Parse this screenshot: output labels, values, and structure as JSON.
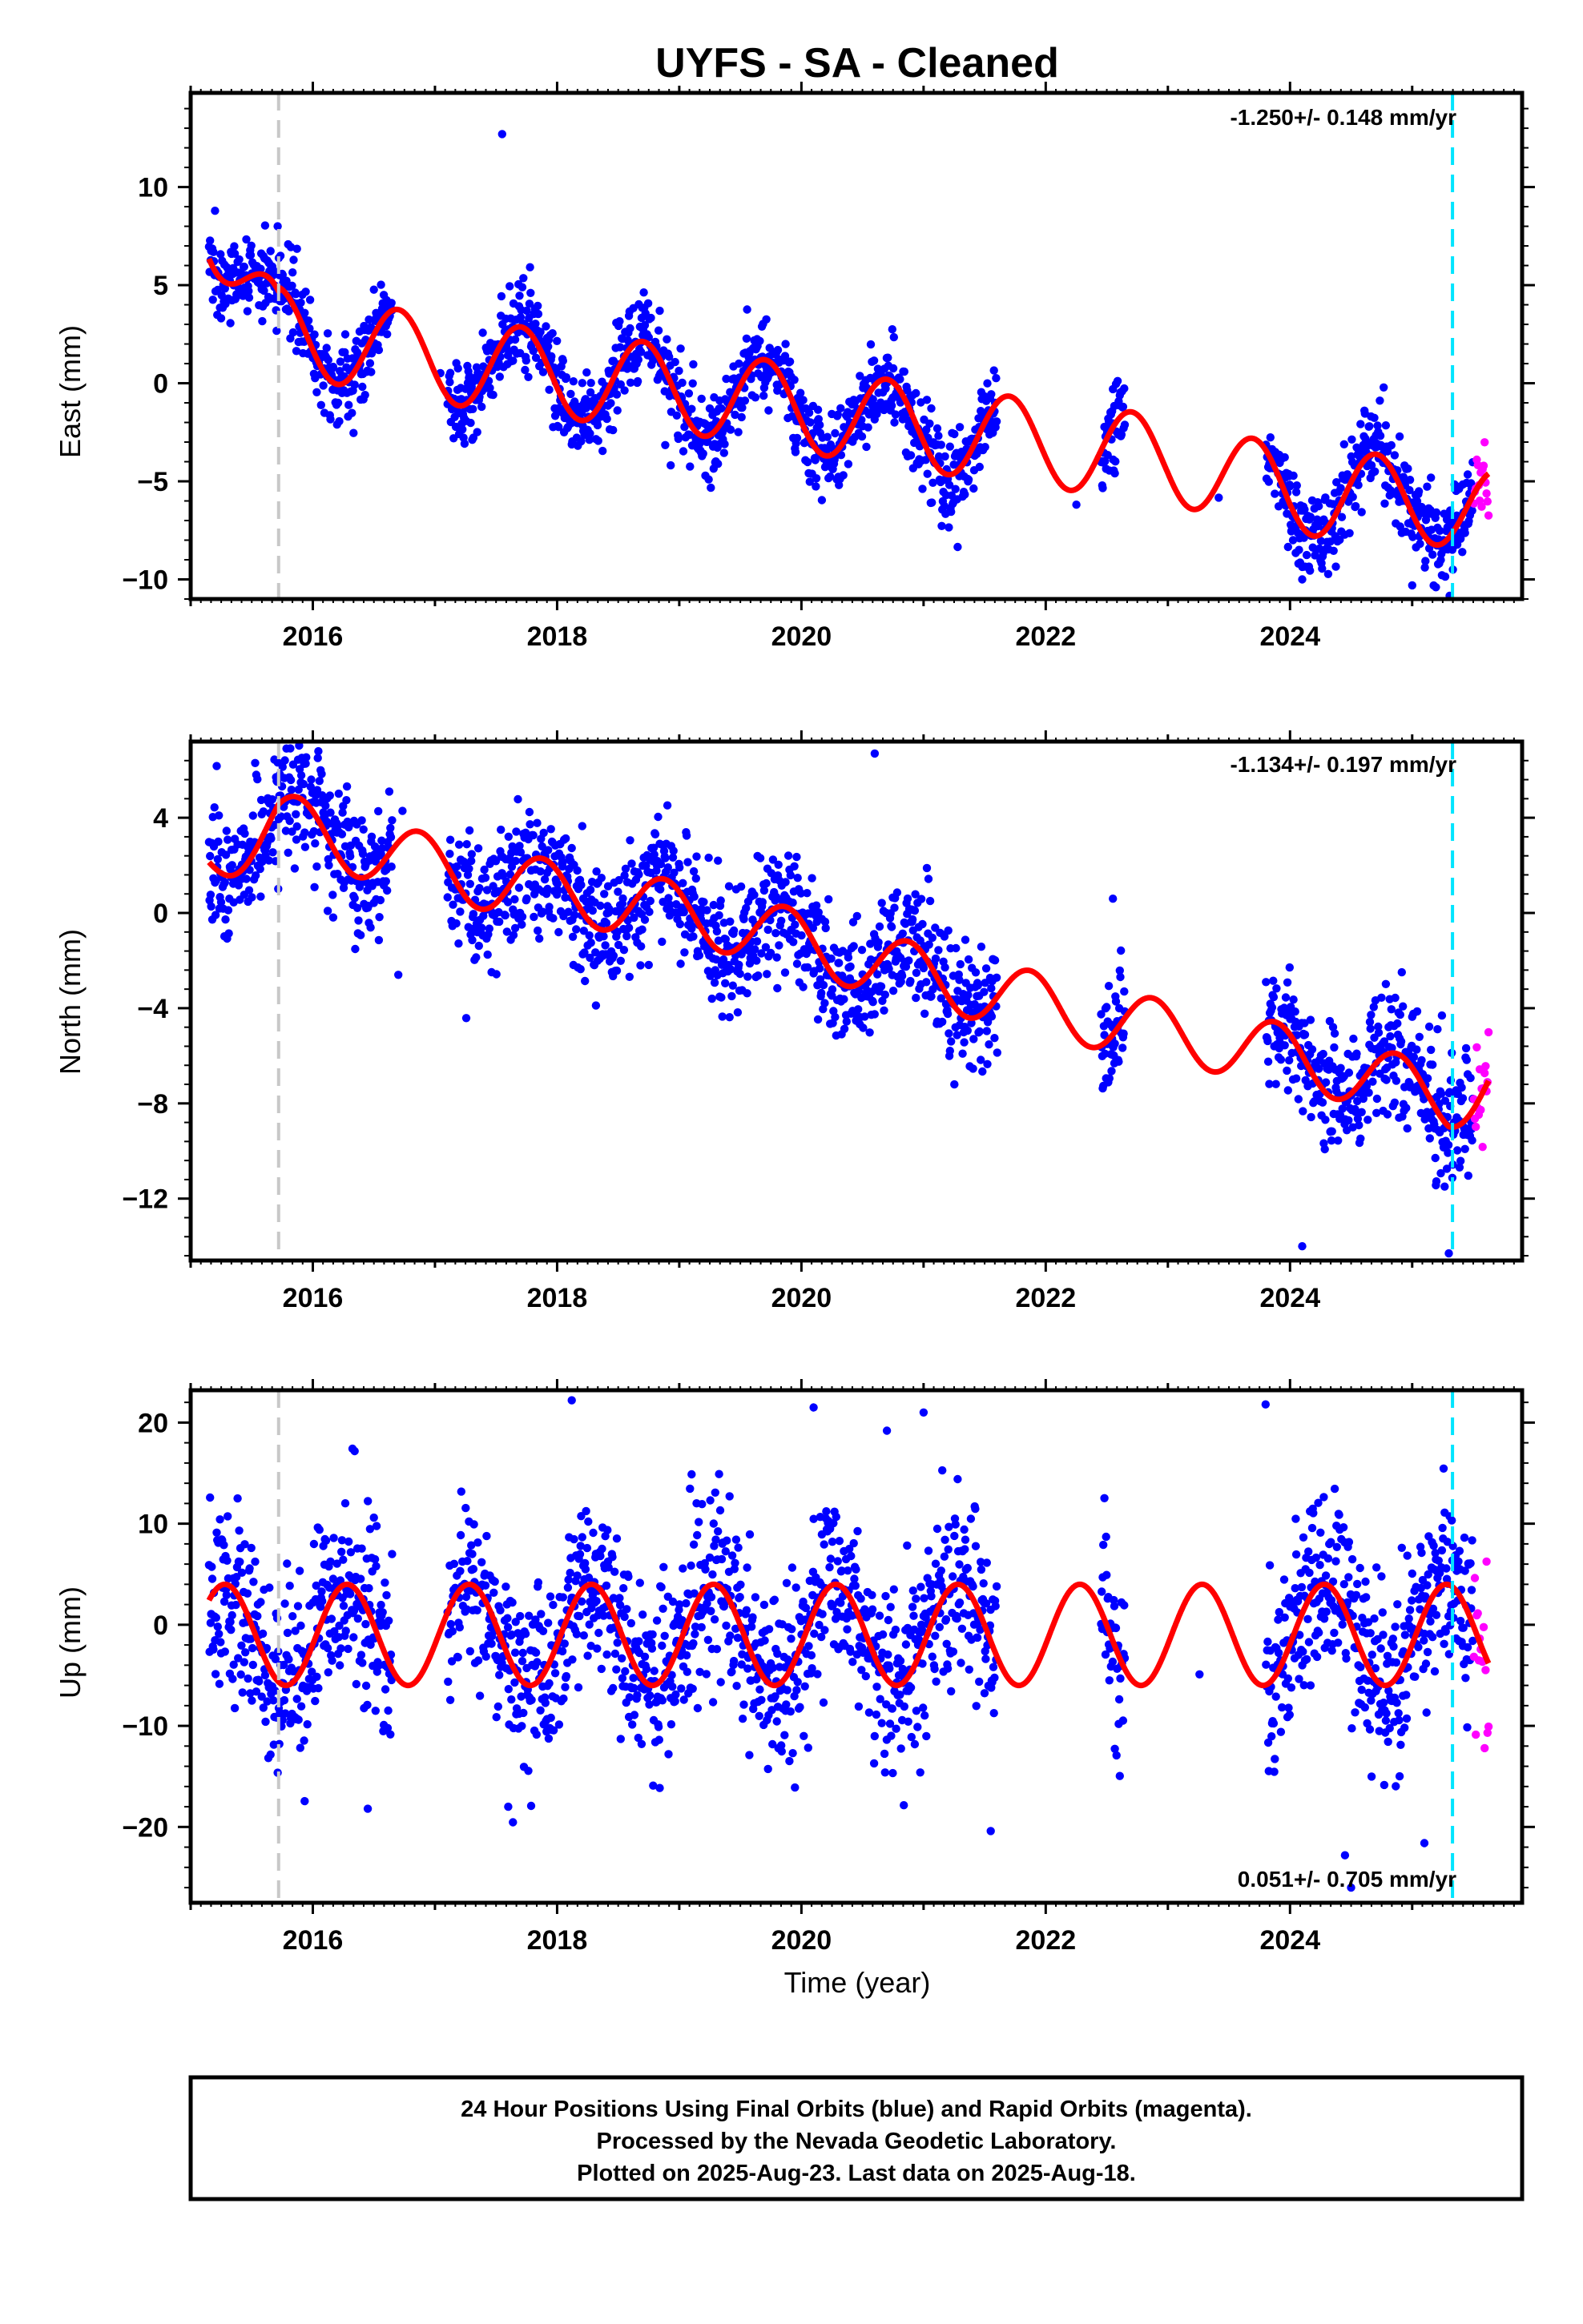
{
  "colors": {
    "final": "#0000ff",
    "rapid": "#ff00ff",
    "model": "#ff0000",
    "event_gray": "#c8c8c8",
    "event_cyan": "#00e5ff"
  },
  "chart_data": {
    "type": "scatter",
    "title": "UYFS  - SA - Cleaned",
    "xlabel": "Time (year)",
    "xlim": [
      2015.0,
      2025.9
    ],
    "x_ticks": [
      2016,
      2018,
      2020,
      2022,
      2024
    ],
    "event_lines": [
      {
        "x": 2015.72,
        "color": "gray"
      },
      {
        "x": 2025.33,
        "color": "cyan"
      }
    ],
    "data_gaps": [
      [
        2016.65,
        2017.1
      ],
      [
        2021.6,
        2022.45
      ],
      [
        2022.65,
        2023.8
      ]
    ],
    "last_final_epoch": 2025.5,
    "last_rapid_epoch": 2025.63,
    "panels": [
      {
        "id": "east",
        "ylabel": "East (mm)",
        "rate": "-1.250+/- 0.148 mm/yr",
        "rate_position": "top-right",
        "ylim": [
          -11,
          14.8
        ],
        "y_ticks": [
          -10,
          -5,
          0,
          5,
          10
        ],
        "model": {
          "offset": [
            10.0,
            2.5,
            2.7,
            1.2,
            -0.3,
            -2.3,
            -3.9,
            -5.5,
            -6.1,
            -7.0
          ],
          "knot_years": [
            2015.0,
            2015.72,
            2015.73,
            2017.0,
            2019.0,
            2021.0,
            2023.0,
            2024.0,
            2025.32,
            2025.9
          ],
          "seasonal_amplitude": 2.2,
          "seasonal_phase_year": 0.45,
          "jumps": [
            {
              "x": 2015.72,
              "size": -4.5
            }
          ]
        },
        "scatter_sd": 1.1,
        "outliers": [
          {
            "x": 2017.55,
            "y": 12.7
          },
          {
            "x": 2022.55,
            "y": -0.3
          },
          {
            "x": 2024.1,
            "y": -10.0
          },
          {
            "x": 2025.0,
            "y": -10.3
          }
        ]
      },
      {
        "id": "north",
        "ylabel": "North (mm)",
        "rate": "-1.134+/- 0.197 mm/yr",
        "rate_position": "top-right",
        "ylim": [
          -14.6,
          7.2
        ],
        "y_ticks": [
          -12,
          -8,
          -4,
          0,
          4
        ],
        "model": {
          "offset": [
            2.0,
            3.8,
            2.6,
            1.3,
            0.4,
            -0.5,
            -2.4,
            -4.5,
            -6.0,
            -7.8,
            -6.5
          ],
          "knot_years": [
            2015.0,
            2015.72,
            2016.5,
            2017.5,
            2018.6,
            2019.5,
            2020.8,
            2022.5,
            2024.0,
            2025.3,
            2025.9
          ],
          "seasonal_amplitude": 1.3,
          "seasonal_phase_year": 0.62,
          "jumps": []
        },
        "scatter_sd": 1.3,
        "outliers": [
          {
            "x": 2020.6,
            "y": 6.7
          },
          {
            "x": 2016.7,
            "y": -2.6
          },
          {
            "x": 2024.1,
            "y": -14.0
          },
          {
            "x": 2025.3,
            "y": -14.3
          },
          {
            "x": 2022.55,
            "y": 0.6
          }
        ]
      },
      {
        "id": "up",
        "ylabel": "Up (mm)",
        "rate": "0.051+/- 0.705 mm/yr",
        "rate_position": "bottom-right",
        "ylim": [
          -27.5,
          23.2
        ],
        "y_ticks": [
          -20,
          -10,
          0,
          10,
          20
        ],
        "model": {
          "offset": [
            -1.0,
            -1.0
          ],
          "knot_years": [
            2015.0,
            2025.9
          ],
          "seasonal_amplitude": 5.0,
          "seasonal_phase_year": 0.03,
          "jumps": []
        },
        "scatter_sd": 4.5,
        "outliers": [
          {
            "x": 2018.12,
            "y": 22.2
          },
          {
            "x": 2020.1,
            "y": 21.5
          },
          {
            "x": 2020.7,
            "y": 19.2
          },
          {
            "x": 2021.0,
            "y": 21.0
          },
          {
            "x": 2023.8,
            "y": 21.8
          },
          {
            "x": 2024.45,
            "y": -22.8
          },
          {
            "x": 2024.5,
            "y": -26.0
          },
          {
            "x": 2025.1,
            "y": -21.6
          },
          {
            "x": 2016.45,
            "y": -18.2
          },
          {
            "x": 2017.6,
            "y": -18.0
          },
          {
            "x": 2021.55,
            "y": -20.4
          }
        ]
      }
    ]
  },
  "footer": {
    "line1": "24 Hour Positions Using Final Orbits (blue) and Rapid Orbits (magenta).",
    "line2": "Processed by the Nevada Geodetic Laboratory.",
    "line3": "Plotted on 2025-Aug-23. Last data on 2025-Aug-18."
  }
}
